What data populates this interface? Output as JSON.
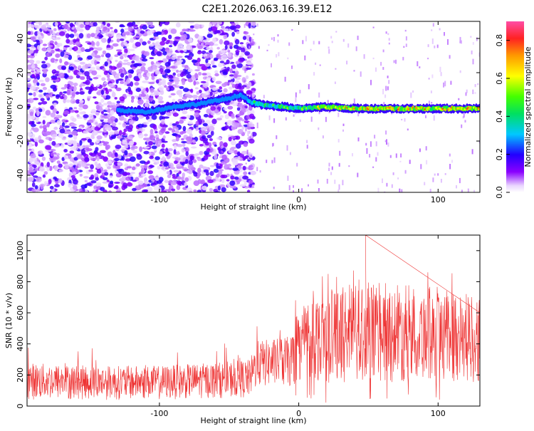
{
  "figure": {
    "title": "C2E1.2026.063.16.39.E12"
  },
  "chart_data": [
    {
      "type": "heatmap",
      "xlabel": "Height of straight line (km)",
      "ylabel": "Frequency (Hz)",
      "xlim": [
        -195,
        130
      ],
      "ylim": [
        -50,
        50
      ],
      "xticks": [
        -100,
        0,
        100
      ],
      "yticks": [
        -40,
        -20,
        0,
        20,
        40
      ],
      "colorbar": {
        "label": "Normalized spectral amplitude",
        "range": [
          0,
          0.9
        ],
        "ticks": [
          "0.0",
          "0.2",
          "0.4",
          "0.6",
          "0.8"
        ],
        "colormap": "rainbow (violet → blue → cyan → green → yellow → orange → red)"
      },
      "ridge": {
        "description": "Doppler ridge frequency vs height",
        "x": [
          -130,
          -110,
          -90,
          -70,
          -50,
          -42,
          -35,
          -25,
          -10,
          0,
          20,
          40,
          60,
          80,
          100,
          130
        ],
        "y": [
          -2,
          -3,
          0,
          2,
          5,
          7,
          3,
          1,
          0,
          -1,
          0,
          -1,
          -1,
          -1,
          -1,
          -1
        ],
        "amplitude": [
          0.2,
          0.3,
          0.25,
          0.25,
          0.3,
          0.4,
          0.45,
          0.55,
          0.6,
          0.6,
          0.75,
          0.8,
          0.8,
          0.8,
          0.8,
          0.8
        ]
      },
      "noise_extent_x": -40
    },
    {
      "type": "line",
      "xlabel": "Height of straight line (km)",
      "ylabel": "SNR (10 * v/v)",
      "xlim": [
        -195,
        130
      ],
      "ylim": [
        0,
        1100
      ],
      "xticks": [
        -100,
        0,
        100
      ],
      "yticks": [
        0,
        200,
        400,
        600,
        800,
        1000
      ],
      "color": "#ee3333",
      "envelope": {
        "x": [
          -195,
          -150,
          -100,
          -60,
          -35,
          -30,
          -5,
          0,
          20,
          50,
          80,
          110,
          130
        ],
        "low": [
          40,
          40,
          40,
          50,
          50,
          120,
          120,
          150,
          150,
          150,
          150,
          150,
          150
        ],
        "high": [
          280,
          260,
          260,
          280,
          300,
          420,
          450,
          680,
          750,
          800,
          780,
          760,
          700
        ],
        "peak": [
          {
            "x": 48,
            "y": 1100
          }
        ]
      }
    }
  ]
}
